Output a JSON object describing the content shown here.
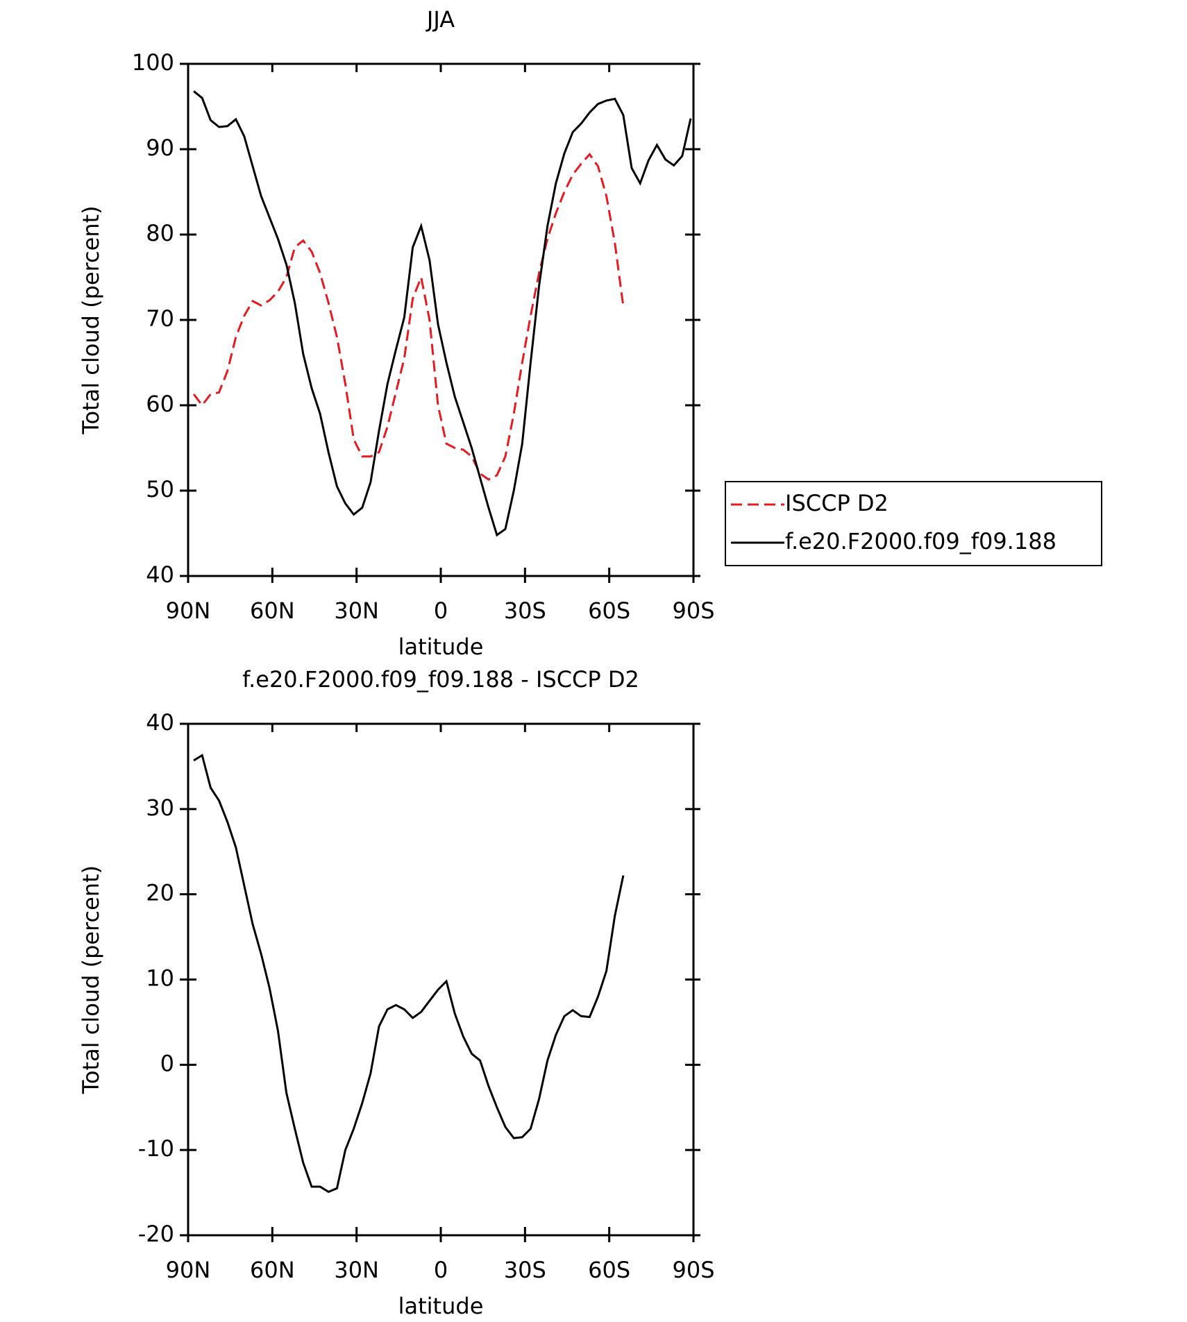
{
  "chart_data": [
    {
      "type": "line",
      "title": "JJA",
      "x_label": "latitude",
      "y_label": "Total cloud (percent)",
      "x": [
        88,
        85,
        82,
        79,
        76,
        73,
        70,
        67,
        64,
        61,
        58,
        55,
        52,
        49,
        46,
        43,
        40,
        37,
        34,
        31,
        28,
        25,
        22,
        19,
        16,
        13,
        10,
        7,
        4,
        1,
        -2,
        -5,
        -8,
        -11,
        -14,
        -17,
        -20,
        -23,
        -26,
        -29,
        -32,
        -35,
        -38,
        -41,
        -44,
        -47,
        -50,
        -53,
        -56,
        -59,
        -62,
        -65,
        -68,
        -71,
        -74,
        -77,
        -80,
        -83,
        -86,
        -89
      ],
      "xlim": [
        90,
        -90
      ],
      "xticks": [
        {
          "value": 90,
          "label": "90N"
        },
        {
          "value": 60,
          "label": "60N"
        },
        {
          "value": 30,
          "label": "30N"
        },
        0,
        {
          "value": -30,
          "label": "30S"
        },
        {
          "value": -60,
          "label": "60S"
        },
        {
          "value": -90,
          "label": "90S"
        }
      ],
      "ylim": [
        40,
        100
      ],
      "yticks": [
        40,
        50,
        60,
        70,
        80,
        90,
        100
      ],
      "legend": "right",
      "series": [
        {
          "name": "ISCCP D2",
          "color": "#e8191f",
          "dashed": true,
          "values": [
            61.3,
            60.0,
            61.3,
            61.5,
            64,
            68,
            70.5,
            72.2,
            71.7,
            72.3,
            73.3,
            75,
            78.5,
            79.3,
            78,
            75.5,
            72,
            68,
            62.5,
            56,
            54,
            54,
            54.5,
            57.5,
            61.5,
            65.5,
            72.5,
            75,
            70,
            60,
            55.5,
            55,
            54.8,
            54,
            52,
            51.3,
            51.8,
            54,
            59,
            65,
            70.5,
            75.5,
            79.5,
            82.5,
            85,
            87,
            88.3,
            89.4,
            88,
            84.5,
            79,
            71.6,
            null,
            null,
            null,
            null,
            null,
            null,
            null,
            null
          ]
        },
        {
          "name": "f.e20.F2000.f09_f09.188",
          "color": "#000000",
          "dashed": false,
          "values": [
            96.8,
            96.0,
            93.4,
            92.6,
            92.7,
            93.5,
            91.5,
            88,
            84.5,
            82,
            79.5,
            76.5,
            72,
            66,
            62,
            59,
            54.5,
            50.5,
            48.5,
            47.2,
            48,
            51,
            57,
            62.5,
            66.5,
            70.3,
            78.5,
            81,
            77,
            69.5,
            65,
            61,
            58,
            55,
            51.5,
            48,
            44.8,
            45.5,
            50,
            55.5,
            65,
            74,
            81,
            86,
            89.5,
            92,
            93,
            94.3,
            95.3,
            95.7,
            95.9,
            94,
            87.8,
            86,
            88.7,
            90.5,
            88.8,
            88.1,
            89.2,
            93.6
          ]
        }
      ]
    },
    {
      "type": "line",
      "title": "f.e20.F2000.f09_f09.188 - ISCCP D2",
      "x_label": "latitude",
      "y_label": "Total cloud (percent)",
      "x": [
        88,
        85,
        82,
        79,
        76,
        73,
        70,
        67,
        64,
        61,
        58,
        55,
        52,
        49,
        46,
        43,
        40,
        37,
        34,
        31,
        28,
        25,
        22,
        19,
        16,
        13,
        10,
        7,
        4,
        1,
        -2,
        -5,
        -8,
        -11,
        -14,
        -17,
        -20,
        -23,
        -26,
        -29,
        -32,
        -35,
        -38,
        -41,
        -44,
        -47,
        -50,
        -53,
        -56,
        -59,
        -62,
        -65
      ],
      "xlim": [
        90,
        -90
      ],
      "xticks": [
        {
          "value": 90,
          "label": "90N"
        },
        {
          "value": 60,
          "label": "60N"
        },
        {
          "value": 30,
          "label": "30N"
        },
        0,
        {
          "value": -30,
          "label": "30S"
        },
        {
          "value": -60,
          "label": "60S"
        },
        {
          "value": -90,
          "label": "90S"
        }
      ],
      "ylim": [
        -20,
        40
      ],
      "yticks": [
        -20,
        -10,
        0,
        10,
        20,
        30,
        40
      ],
      "series": [
        {
          "color": "#000000",
          "dashed": false,
          "values": [
            35.7,
            36.3,
            32.5,
            31,
            28.5,
            25.5,
            21,
            16.5,
            13,
            9,
            4,
            -3.3,
            -7.5,
            -11.5,
            -14.3,
            -14.3,
            -14.9,
            -14.5,
            -10,
            -7.5,
            -4.5,
            -1,
            4.5,
            6.5,
            7,
            6.5,
            5.5,
            6.2,
            7.5,
            8.8,
            9.8,
            6,
            3.3,
            1.3,
            0.5,
            -2.5,
            -5,
            -7.3,
            -8.6,
            -8.5,
            -7.5,
            -4,
            0.5,
            3.5,
            5.7,
            6.4,
            5.7,
            5.6,
            8,
            11,
            17.5,
            22.2
          ]
        }
      ]
    }
  ]
}
